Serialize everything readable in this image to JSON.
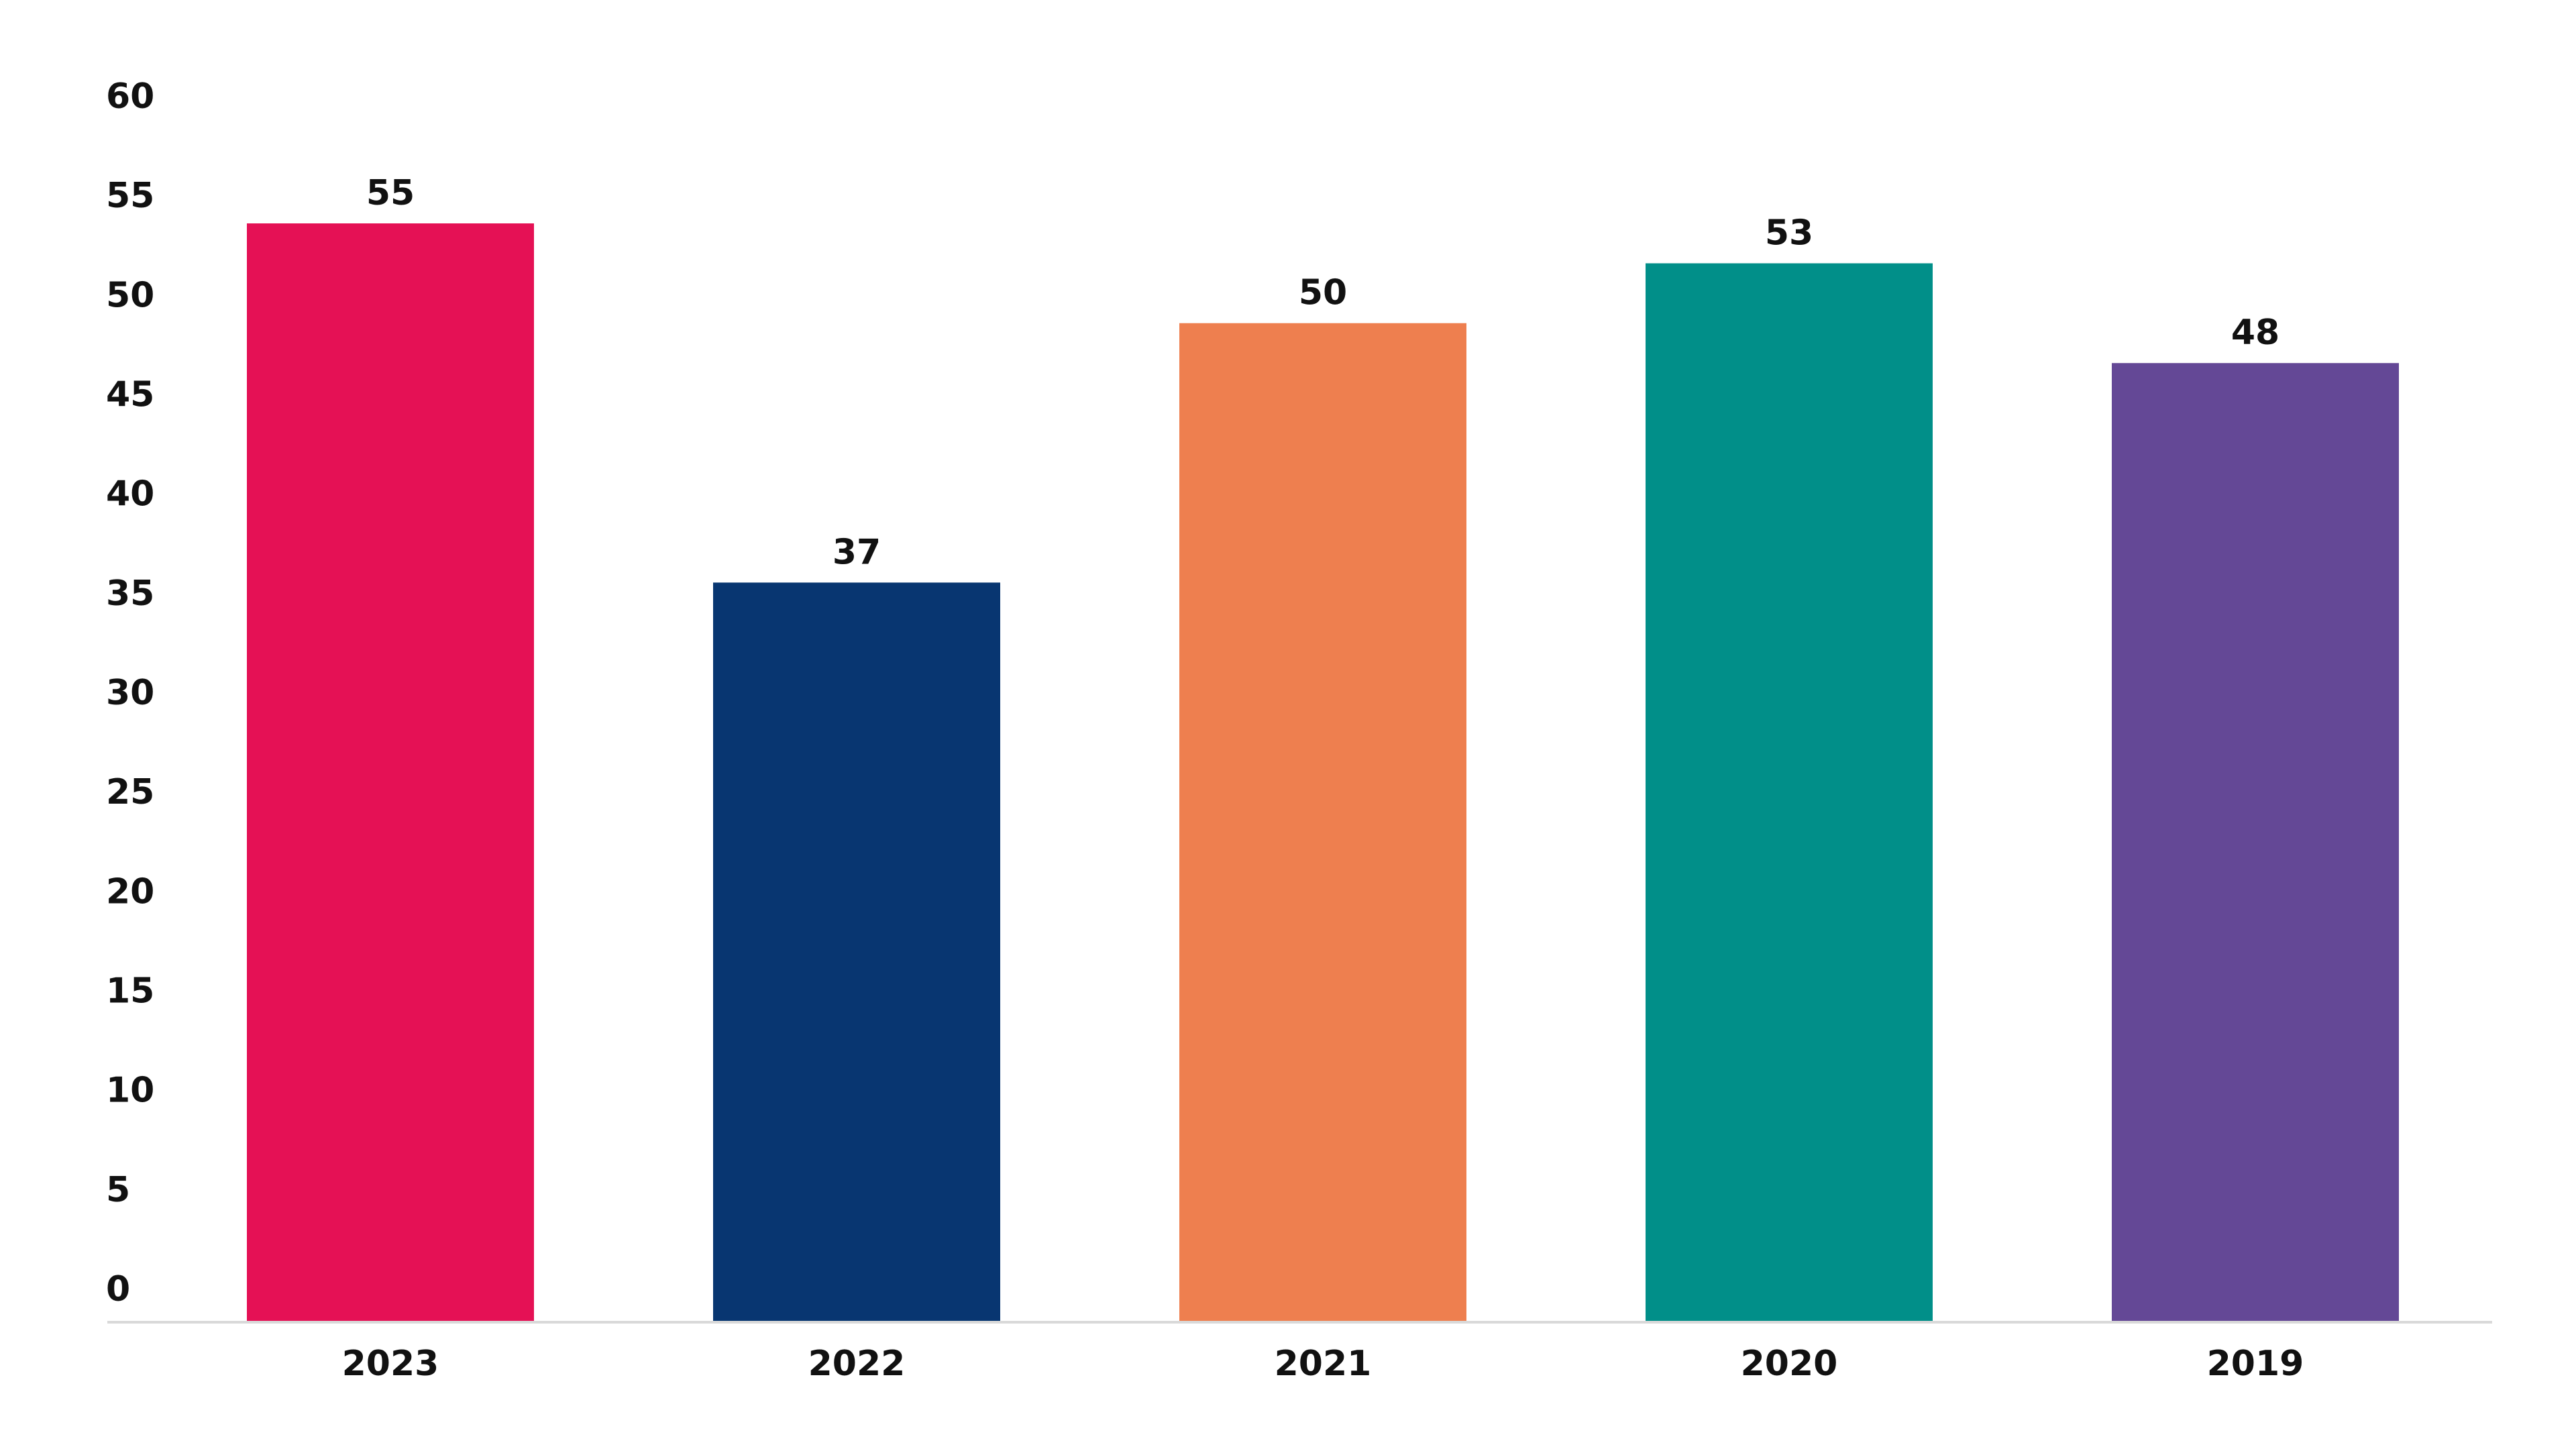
{
  "chart_data": {
    "type": "bar",
    "title": "",
    "xlabel": "",
    "ylabel": "",
    "categories": [
      "2023",
      "2022",
      "2021",
      "2020",
      "2019"
    ],
    "values": [
      55,
      37,
      50,
      53,
      48
    ],
    "data_labels": [
      "55",
      "37",
      "50",
      "53",
      "48"
    ],
    "bar_colors": [
      "#E51155",
      "#083671",
      "#EE7F4F",
      "#018F89",
      "#644896"
    ],
    "ylim": [
      0,
      60
    ],
    "yticks": [
      0,
      5,
      10,
      15,
      20,
      25,
      30,
      35,
      40,
      45,
      50,
      55,
      60
    ],
    "ytick_labels": [
      "0",
      "5",
      "10",
      "15",
      "20",
      "25",
      "30",
      "35",
      "40",
      "45",
      "50",
      "55",
      "60"
    ],
    "grid": false,
    "legend": "none",
    "axis_line_color": "#d9d9d9"
  }
}
